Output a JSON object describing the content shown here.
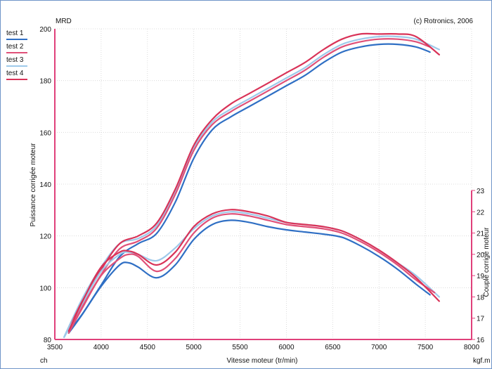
{
  "header": {
    "left_title": "MRD",
    "right_title": "(c) Rotronics, 2006"
  },
  "legend": {
    "items": [
      {
        "label": "test 1",
        "color": "#2f6fc4"
      },
      {
        "label": "test 2",
        "color": "#e05078"
      },
      {
        "label": "test 3",
        "color": "#9ec9ea"
      },
      {
        "label": "test 4",
        "color": "#d93358"
      }
    ]
  },
  "chart_data": {
    "type": "line",
    "xlabel": "Vitesse moteur (tr/min)",
    "ylabel_left": "Puissance corrigée moteur",
    "ylabel_right": "Couple corrigé moteur",
    "unit_left": "ch",
    "unit_right": "kgf.m",
    "xlim": [
      3500,
      8000
    ],
    "ylim_left": [
      80,
      200
    ],
    "ylim_right": [
      16,
      23
    ],
    "x_ticks": [
      3500,
      4000,
      4500,
      5000,
      5500,
      6000,
      6500,
      7000,
      7500,
      8000
    ],
    "y_ticks_left": [
      80,
      100,
      120,
      140,
      160,
      180,
      200
    ],
    "y_ticks_right": [
      16,
      17,
      18,
      19,
      20,
      21,
      22,
      23
    ],
    "grid": true,
    "legend_position": "top-left",
    "power_series": [
      {
        "name": "test 1",
        "color": "#2f6fc4",
        "x": [
          3650,
          3800,
          4000,
          4200,
          4400,
          4600,
          4800,
          5000,
          5200,
          5400,
          5600,
          5800,
          6000,
          6200,
          6400,
          6600,
          6800,
          7000,
          7200,
          7400,
          7550
        ],
        "y": [
          83,
          90,
          101,
          112,
          117,
          121,
          133,
          150,
          161,
          166,
          170,
          174,
          178,
          182,
          187,
          191,
          193,
          194,
          194,
          193,
          191
        ]
      },
      {
        "name": "test 2",
        "color": "#e05078",
        "x": [
          3650,
          3800,
          4000,
          4200,
          4400,
          4600,
          4800,
          5000,
          5200,
          5400,
          5600,
          5800,
          6000,
          6200,
          6400,
          6600,
          6800,
          7000,
          7200,
          7400,
          7550
        ],
        "y": [
          84,
          93,
          105,
          115,
          118,
          123,
          136,
          153,
          163,
          168,
          172,
          176,
          180,
          184,
          189,
          193,
          195,
          196,
          196,
          195,
          193
        ]
      },
      {
        "name": "test 3",
        "color": "#9ec9ea",
        "x": [
          3600,
          3800,
          4000,
          4200,
          4400,
          4600,
          4800,
          5000,
          5200,
          5400,
          5600,
          5800,
          6000,
          6200,
          6400,
          6600,
          6800,
          7000,
          7200,
          7400,
          7650
        ],
        "y": [
          81,
          96,
          108,
          117,
          119,
          124,
          137,
          154,
          164,
          169,
          173,
          177,
          181,
          185,
          190,
          194,
          196,
          197,
          197,
          196,
          192
        ]
      },
      {
        "name": "test 4",
        "color": "#d93358",
        "x": [
          3650,
          3800,
          4000,
          4200,
          4400,
          4600,
          4800,
          5000,
          5200,
          5400,
          5600,
          5800,
          6000,
          6200,
          6400,
          6600,
          6800,
          7000,
          7200,
          7400,
          7650
        ],
        "y": [
          84,
          95,
          107,
          117,
          120,
          125,
          138,
          155,
          165,
          171,
          175,
          179,
          183,
          187,
          192,
          196,
          198,
          198,
          198,
          197,
          190
        ]
      }
    ],
    "torque_series": [
      {
        "name": "test 1",
        "color": "#2f6fc4",
        "x": [
          3650,
          3800,
          4000,
          4200,
          4300,
          4400,
          4600,
          4800,
          5000,
          5200,
          5400,
          5600,
          5800,
          6000,
          6200,
          6400,
          6600,
          6800,
          7000,
          7200,
          7400,
          7550
        ],
        "y": [
          16.3,
          17.2,
          18.5,
          19.5,
          19.6,
          19.4,
          18.9,
          19.5,
          20.7,
          21.4,
          21.6,
          21.5,
          21.3,
          21.15,
          21.05,
          20.95,
          20.8,
          20.4,
          19.9,
          19.3,
          18.6,
          18.1
        ]
      },
      {
        "name": "test 2",
        "color": "#e05078",
        "x": [
          3650,
          3800,
          4000,
          4200,
          4300,
          4400,
          4600,
          4800,
          5000,
          5200,
          5400,
          5600,
          5800,
          6000,
          6200,
          6400,
          6600,
          6800,
          7000,
          7200,
          7400,
          7600
        ],
        "y": [
          16.3,
          17.5,
          19.0,
          19.8,
          20.0,
          19.9,
          19.2,
          19.8,
          21.0,
          21.7,
          21.9,
          21.8,
          21.6,
          21.4,
          21.3,
          21.2,
          21.0,
          20.6,
          20.1,
          19.5,
          18.8,
          18.2
        ]
      },
      {
        "name": "test 3",
        "color": "#9ec9ea",
        "x": [
          3600,
          3800,
          4000,
          4200,
          4300,
          4400,
          4600,
          4800,
          5000,
          5200,
          5400,
          5600,
          5800,
          6000,
          6200,
          6400,
          6600,
          6800,
          7000,
          7200,
          7400,
          7650
        ],
        "y": [
          16.1,
          17.7,
          19.2,
          20.0,
          20.1,
          20.0,
          19.7,
          20.3,
          21.2,
          21.8,
          22.0,
          21.9,
          21.7,
          21.5,
          21.4,
          21.3,
          21.1,
          20.7,
          20.2,
          19.6,
          19.0,
          18.0
        ]
      },
      {
        "name": "test 4",
        "color": "#d93358",
        "x": [
          3650,
          3800,
          4000,
          4200,
          4300,
          4400,
          4600,
          4800,
          5000,
          5200,
          5400,
          5600,
          5800,
          6000,
          6200,
          6400,
          6600,
          6800,
          7000,
          7200,
          7400,
          7650
        ],
        "y": [
          16.4,
          17.8,
          19.4,
          20.1,
          20.15,
          20.0,
          19.5,
          20.1,
          21.3,
          21.9,
          22.1,
          22.0,
          21.8,
          21.5,
          21.4,
          21.3,
          21.1,
          20.7,
          20.2,
          19.6,
          18.9,
          17.8
        ]
      }
    ]
  }
}
